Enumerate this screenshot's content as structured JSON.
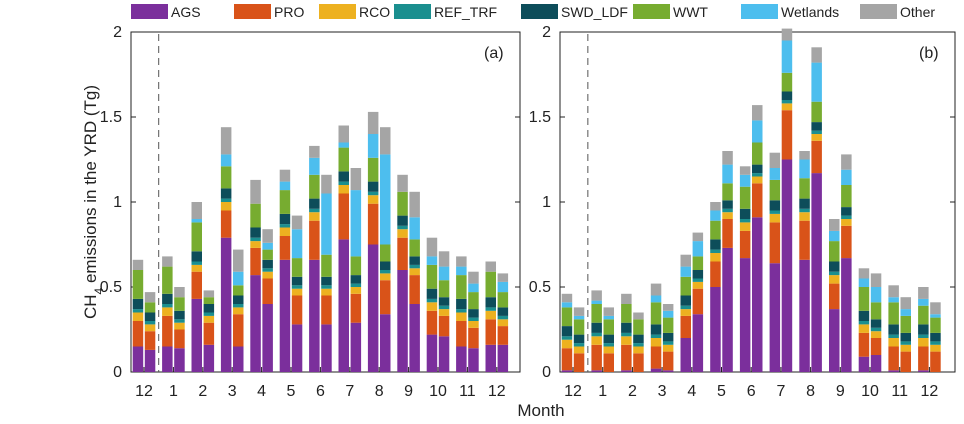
{
  "chart_data": {
    "type": "bar",
    "stacked": true,
    "grouped": true,
    "xlabel": "Month",
    "ylabel": "CH4 emissions in the YRD (Tg)",
    "ylabel_parts": {
      "main": "CH",
      "sub": "4",
      "rest": " emissions in the YRD (Tg)"
    },
    "ylim": [
      0,
      2
    ],
    "yticks": [
      "0",
      "0.5",
      "1",
      "1.5",
      "2"
    ],
    "categories": [
      "12",
      "1",
      "2",
      "3",
      "4",
      "5",
      "6",
      "7",
      "8",
      "9",
      "10",
      "11",
      "12"
    ],
    "legend": [
      {
        "name": "AGS",
        "color": "#7b2f9c"
      },
      {
        "name": "PRO",
        "color": "#d95319"
      },
      {
        "name": "RCO",
        "color": "#edb120"
      },
      {
        "name": "REF_TRF",
        "color": "#1a8f8f"
      },
      {
        "name": "SWD_LDF",
        "color": "#0d4d5a"
      },
      {
        "name": "WWT",
        "color": "#77ac30"
      },
      {
        "name": "Wetlands",
        "color": "#4dbeee"
      },
      {
        "name": "Other",
        "color": "#a5a5a5"
      }
    ],
    "bar_series_order": [
      "AGS",
      "PRO",
      "RCO",
      "REF_TRF",
      "SWD_LDF",
      "WWT",
      "Wetlands",
      "Other"
    ],
    "panels": [
      {
        "label": "(a)",
        "bars": {
          "AGS": [
            [
              0.15,
              0.13
            ],
            [
              0.15,
              0.14
            ],
            [
              0.43,
              0.16
            ],
            [
              0.79,
              0.15
            ],
            [
              0.57,
              0.4
            ],
            [
              0.66,
              0.28
            ],
            [
              0.66,
              0.28
            ],
            [
              0.78,
              0.29
            ],
            [
              0.75,
              0.34
            ],
            [
              0.6,
              0.4
            ],
            [
              0.22,
              0.21
            ],
            [
              0.15,
              0.14
            ],
            [
              0.16,
              0.16
            ]
          ],
          "PRO": [
            [
              0.15,
              0.11
            ],
            [
              0.18,
              0.11
            ],
            [
              0.16,
              0.13
            ],
            [
              0.16,
              0.19
            ],
            [
              0.16,
              0.15
            ],
            [
              0.14,
              0.17
            ],
            [
              0.23,
              0.17
            ],
            [
              0.27,
              0.17
            ],
            [
              0.24,
              0.2
            ],
            [
              0.19,
              0.17
            ],
            [
              0.14,
              0.12
            ],
            [
              0.15,
              0.12
            ],
            [
              0.15,
              0.11
            ]
          ],
          "RCO": [
            [
              0.05,
              0.04
            ],
            [
              0.05,
              0.04
            ],
            [
              0.04,
              0.04
            ],
            [
              0.05,
              0.04
            ],
            [
              0.04,
              0.04
            ],
            [
              0.05,
              0.04
            ],
            [
              0.05,
              0.04
            ],
            [
              0.05,
              0.04
            ],
            [
              0.05,
              0.04
            ],
            [
              0.05,
              0.04
            ],
            [
              0.05,
              0.04
            ],
            [
              0.05,
              0.04
            ],
            [
              0.05,
              0.04
            ]
          ],
          "REF_TRF": [
            [
              0.02,
              0.02
            ],
            [
              0.02,
              0.02
            ],
            [
              0.02,
              0.02
            ],
            [
              0.02,
              0.02
            ],
            [
              0.02,
              0.02
            ],
            [
              0.02,
              0.02
            ],
            [
              0.02,
              0.02
            ],
            [
              0.02,
              0.02
            ],
            [
              0.02,
              0.02
            ],
            [
              0.02,
              0.02
            ],
            [
              0.02,
              0.02
            ],
            [
              0.02,
              0.02
            ],
            [
              0.02,
              0.02
            ]
          ],
          "SWD_LDF": [
            [
              0.06,
              0.05
            ],
            [
              0.06,
              0.05
            ],
            [
              0.06,
              0.05
            ],
            [
              0.06,
              0.05
            ],
            [
              0.06,
              0.05
            ],
            [
              0.06,
              0.05
            ],
            [
              0.06,
              0.05
            ],
            [
              0.06,
              0.05
            ],
            [
              0.06,
              0.05
            ],
            [
              0.06,
              0.05
            ],
            [
              0.06,
              0.05
            ],
            [
              0.06,
              0.05
            ],
            [
              0.06,
              0.05
            ]
          ],
          "WWT": [
            [
              0.17,
              0.06
            ],
            [
              0.16,
              0.08
            ],
            [
              0.17,
              0.04
            ],
            [
              0.13,
              0.06
            ],
            [
              0.14,
              0.06
            ],
            [
              0.14,
              0.11
            ],
            [
              0.14,
              0.13
            ],
            [
              0.14,
              0.11
            ],
            [
              0.14,
              0.1
            ],
            [
              0.14,
              0.1
            ],
            [
              0.14,
              0.1
            ],
            [
              0.14,
              0.1
            ],
            [
              0.15,
              0.09
            ]
          ],
          "Wetlands": [
            [
              0.0,
              0.0
            ],
            [
              0.0,
              0.0
            ],
            [
              0.02,
              0.0
            ],
            [
              0.07,
              0.08
            ],
            [
              0.0,
              0.04
            ],
            [
              0.05,
              0.17
            ],
            [
              0.1,
              0.36
            ],
            [
              0.03,
              0.39
            ],
            [
              0.14,
              0.53
            ],
            [
              0.0,
              0.13
            ],
            [
              0.05,
              0.08
            ],
            [
              0.05,
              0.05
            ],
            [
              0.0,
              0.06
            ]
          ],
          "Other": [
            [
              0.06,
              0.06
            ],
            [
              0.06,
              0.06
            ],
            [
              0.1,
              0.04
            ],
            [
              0.16,
              0.13
            ],
            [
              0.14,
              0.08
            ],
            [
              0.07,
              0.08
            ],
            [
              0.07,
              0.11
            ],
            [
              0.1,
              0.13
            ],
            [
              0.13,
              0.16
            ],
            [
              0.1,
              0.15
            ],
            [
              0.11,
              0.09
            ],
            [
              0.06,
              0.07
            ],
            [
              0.06,
              0.05
            ]
          ]
        }
      },
      {
        "label": "(b)",
        "bars": {
          "AGS": [
            [
              0.01,
              0.0
            ],
            [
              0.01,
              0.0
            ],
            [
              0.01,
              0.0
            ],
            [
              0.02,
              0.01
            ],
            [
              0.2,
              0.34
            ],
            [
              0.5,
              0.73
            ],
            [
              0.67,
              0.91
            ],
            [
              0.64,
              1.25
            ],
            [
              0.66,
              1.17
            ],
            [
              0.37,
              0.67
            ],
            [
              0.09,
              0.1
            ],
            [
              0.01,
              0.0
            ],
            [
              0.01,
              0.0
            ]
          ],
          "PRO": [
            [
              0.13,
              0.11
            ],
            [
              0.15,
              0.11
            ],
            [
              0.15,
              0.11
            ],
            [
              0.13,
              0.11
            ],
            [
              0.13,
              0.15
            ],
            [
              0.15,
              0.17
            ],
            [
              0.16,
              0.2
            ],
            [
              0.24,
              0.29
            ],
            [
              0.23,
              0.19
            ],
            [
              0.15,
              0.19
            ],
            [
              0.14,
              0.1
            ],
            [
              0.14,
              0.12
            ],
            [
              0.14,
              0.12
            ]
          ],
          "RCO": [
            [
              0.05,
              0.04
            ],
            [
              0.05,
              0.04
            ],
            [
              0.05,
              0.04
            ],
            [
              0.05,
              0.04
            ],
            [
              0.04,
              0.04
            ],
            [
              0.05,
              0.04
            ],
            [
              0.05,
              0.04
            ],
            [
              0.05,
              0.04
            ],
            [
              0.05,
              0.04
            ],
            [
              0.05,
              0.04
            ],
            [
              0.05,
              0.04
            ],
            [
              0.05,
              0.04
            ],
            [
              0.05,
              0.04
            ]
          ],
          "REF_TRF": [
            [
              0.02,
              0.02
            ],
            [
              0.02,
              0.02
            ],
            [
              0.02,
              0.02
            ],
            [
              0.02,
              0.02
            ],
            [
              0.02,
              0.02
            ],
            [
              0.02,
              0.02
            ],
            [
              0.02,
              0.02
            ],
            [
              0.02,
              0.02
            ],
            [
              0.02,
              0.02
            ],
            [
              0.02,
              0.02
            ],
            [
              0.02,
              0.02
            ],
            [
              0.02,
              0.02
            ],
            [
              0.02,
              0.02
            ]
          ],
          "SWD_LDF": [
            [
              0.06,
              0.05
            ],
            [
              0.06,
              0.05
            ],
            [
              0.06,
              0.05
            ],
            [
              0.06,
              0.05
            ],
            [
              0.06,
              0.05
            ],
            [
              0.06,
              0.05
            ],
            [
              0.06,
              0.05
            ],
            [
              0.06,
              0.05
            ],
            [
              0.06,
              0.05
            ],
            [
              0.06,
              0.05
            ],
            [
              0.06,
              0.05
            ],
            [
              0.06,
              0.05
            ],
            [
              0.06,
              0.05
            ]
          ],
          "WWT": [
            [
              0.11,
              0.09
            ],
            [
              0.11,
              0.09
            ],
            [
              0.11,
              0.09
            ],
            [
              0.13,
              0.09
            ],
            [
              0.11,
              0.08
            ],
            [
              0.11,
              0.1
            ],
            [
              0.13,
              0.13
            ],
            [
              0.12,
              0.11
            ],
            [
              0.12,
              0.12
            ],
            [
              0.12,
              0.13
            ],
            [
              0.14,
              0.1
            ],
            [
              0.13,
              0.1
            ],
            [
              0.11,
              0.09
            ]
          ],
          "Wetlands": [
            [
              0.03,
              0.02
            ],
            [
              0.02,
              0.02
            ],
            [
              0.0,
              0.0
            ],
            [
              0.04,
              0.04
            ],
            [
              0.06,
              0.09
            ],
            [
              0.06,
              0.11
            ],
            [
              0.07,
              0.13
            ],
            [
              0.07,
              0.19
            ],
            [
              0.11,
              0.23
            ],
            [
              0.06,
              0.09
            ],
            [
              0.05,
              0.09
            ],
            [
              0.03,
              0.04
            ],
            [
              0.04,
              0.02
            ]
          ],
          "Other": [
            [
              0.05,
              0.05
            ],
            [
              0.06,
              0.05
            ],
            [
              0.06,
              0.04
            ],
            [
              0.07,
              0.04
            ],
            [
              0.07,
              0.05
            ],
            [
              0.05,
              0.08
            ],
            [
              0.05,
              0.09
            ],
            [
              0.09,
              0.07
            ],
            [
              0.05,
              0.09
            ],
            [
              0.07,
              0.09
            ],
            [
              0.06,
              0.08
            ],
            [
              0.07,
              0.07
            ],
            [
              0.07,
              0.07
            ]
          ]
        }
      }
    ]
  }
}
